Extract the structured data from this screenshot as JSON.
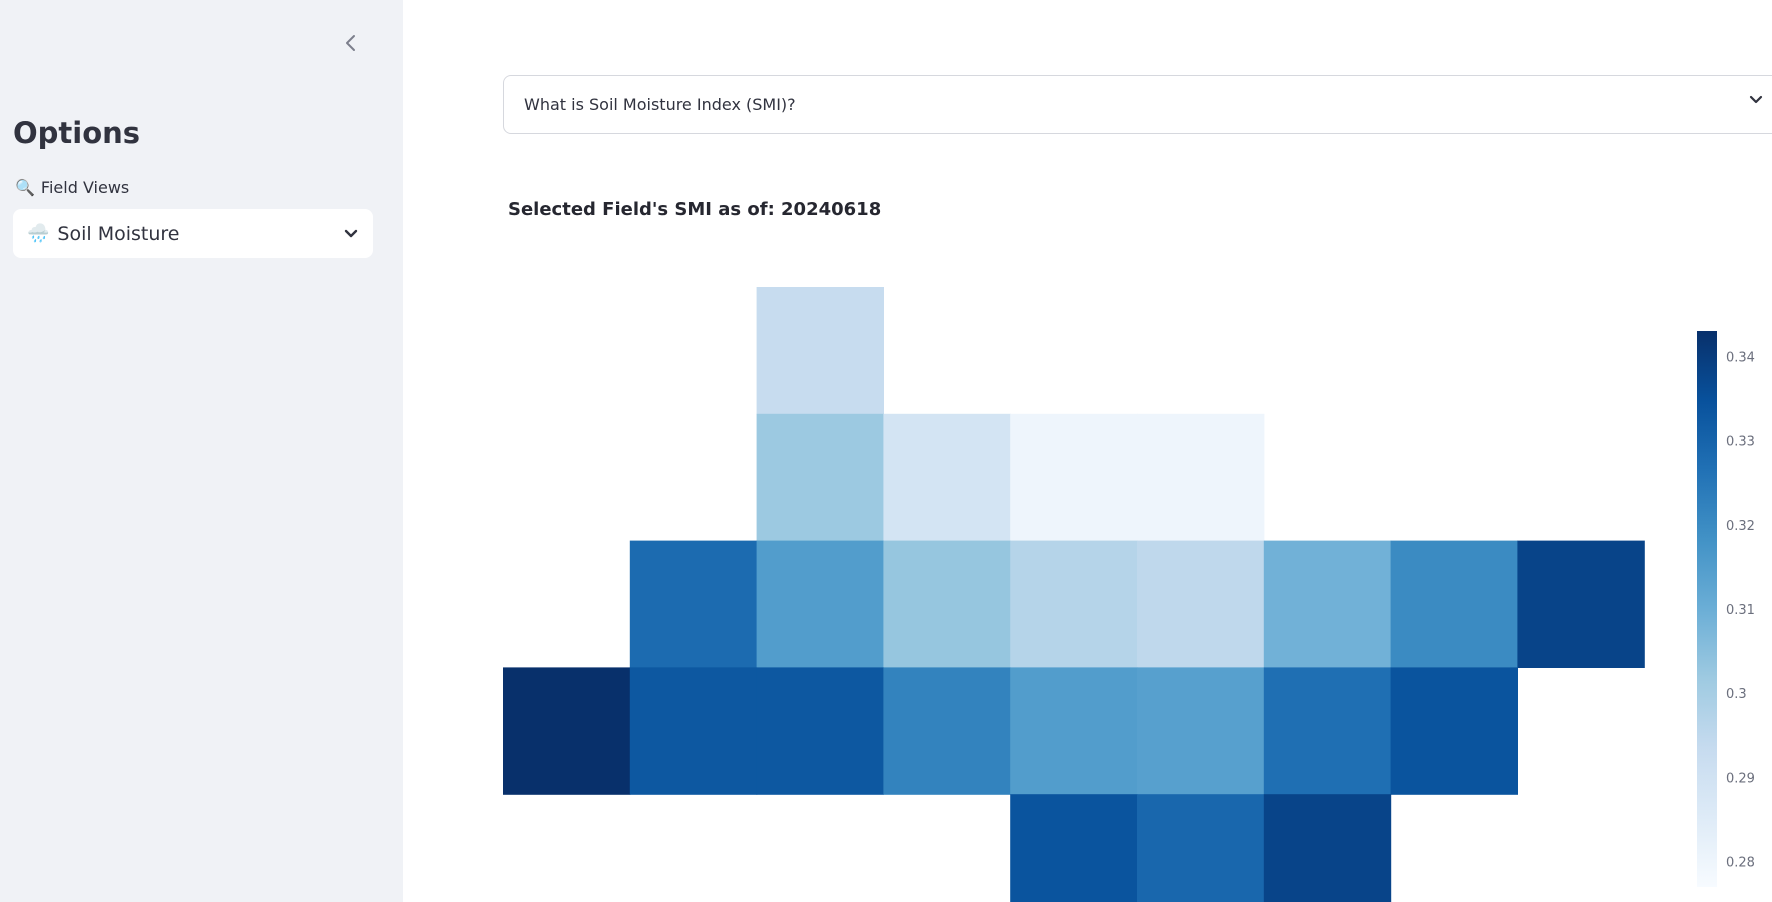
{
  "sidebar": {
    "title": "Options",
    "field_views_label": "Field Views",
    "field_views_emoji": "🔍",
    "selected_view": "Soil Moisture",
    "selected_view_emoji": "🌧️"
  },
  "expander": {
    "label": "What is Soil Moisture Index (SMI)?"
  },
  "chart_title": "Selected Field's SMI as of: 20240618",
  "chart_data": {
    "type": "heatmap",
    "title": "Selected Field's SMI as of: 20240618",
    "colorscale": "Blues",
    "zrange": [
      0.277,
      0.343
    ],
    "colorbar_ticks": [
      "0.34",
      "0.33",
      "0.32",
      "0.31",
      "0.3",
      "0.29",
      "0.28"
    ],
    "colorbar_tick_values": [
      0.34,
      0.33,
      0.32,
      0.31,
      0.3,
      0.29,
      0.28
    ],
    "rows": [
      [
        null,
        null,
        0.293,
        null,
        null,
        null,
        null,
        null,
        null
      ],
      [
        null,
        null,
        0.302,
        0.289,
        0.28,
        0.28,
        null,
        null,
        null
      ],
      [
        null,
        0.328,
        0.315,
        0.303,
        0.297,
        0.295,
        0.309,
        0.32,
        0.338
      ],
      [
        0.343,
        0.333,
        0.333,
        0.322,
        0.315,
        0.314,
        0.327,
        0.334,
        null
      ],
      [
        null,
        null,
        null,
        null,
        0.334,
        0.329,
        0.338,
        null,
        null
      ]
    ]
  }
}
